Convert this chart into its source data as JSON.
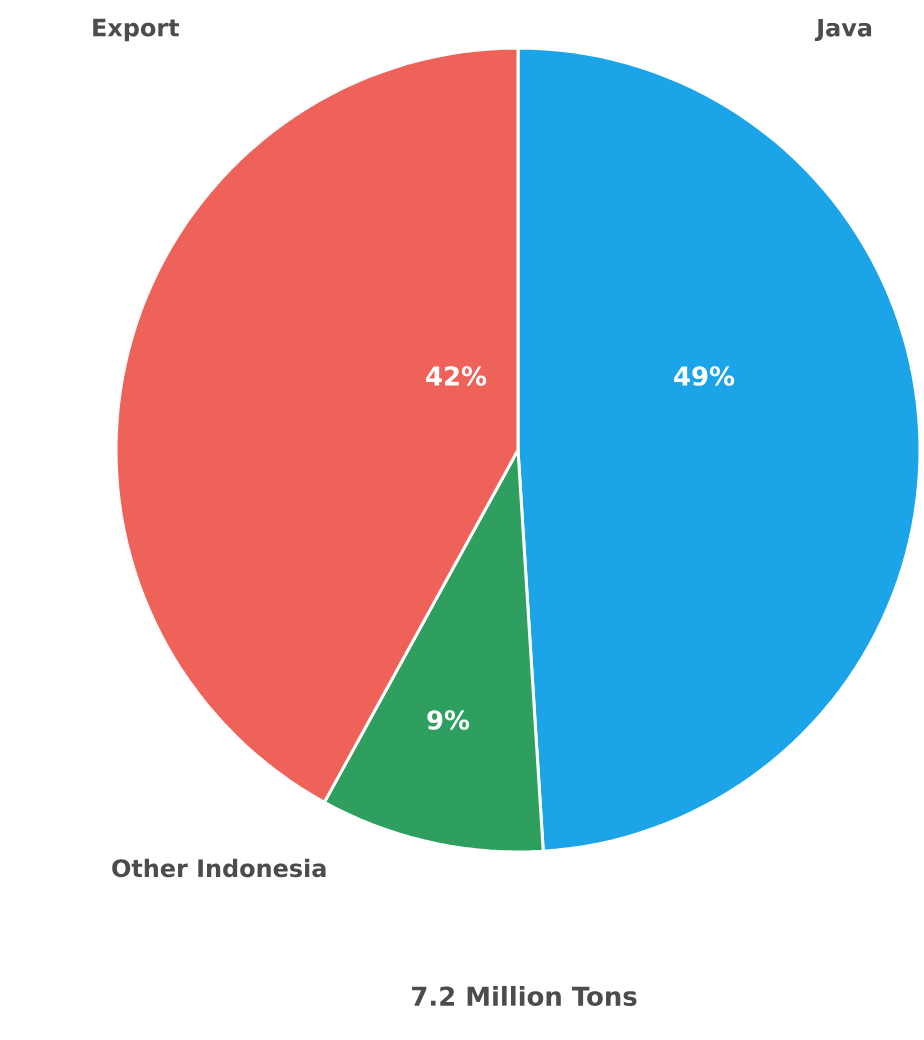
{
  "chart_data": {
    "type": "pie",
    "title": "7.2 Million Tons",
    "categories": [
      "Java",
      "Other Indonesia",
      "Export"
    ],
    "values": [
      49,
      9,
      42
    ],
    "value_labels": [
      "49%",
      "9%",
      "42%"
    ],
    "colors": [
      "#1ba4e8",
      "#2f9f5f",
      "#ef625a"
    ]
  }
}
